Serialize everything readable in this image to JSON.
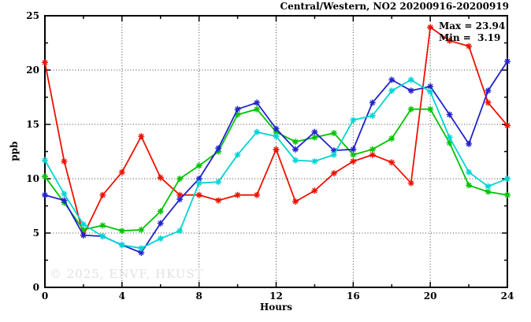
{
  "title": "Central/Western, NO2 20200916-20200919",
  "stats": {
    "max_label": "Max = 23.94",
    "min_label": "Min =  3.19"
  },
  "watermark": "© 2025, ENVF, HKUST",
  "chart_data": {
    "type": "line",
    "title": "Central/Western, NO2 20200916-20200919",
    "xlabel": "Hours",
    "ylabel": "ppb",
    "xlim": [
      0,
      24
    ],
    "ylim": [
      0,
      25
    ],
    "xticks": [
      0,
      4,
      8,
      12,
      16,
      20,
      24
    ],
    "xminorticks": [
      2,
      6,
      10,
      14,
      18,
      22
    ],
    "yticks": [
      0,
      5,
      10,
      15,
      20,
      25
    ],
    "yminorticks": [
      2.5,
      7.5,
      12.5,
      17.5,
      22.5
    ],
    "grid": true,
    "legend_position": "none",
    "max_value": 23.94,
    "min_value": 3.19,
    "x": [
      0,
      1,
      2,
      3,
      4,
      5,
      6,
      7,
      8,
      9,
      10,
      11,
      12,
      13,
      14,
      15,
      16,
      17,
      18,
      19,
      20,
      21,
      22,
      23,
      24
    ],
    "series": [
      {
        "name": "red-line",
        "color": "#ee1100",
        "values": [
          20.7,
          11.6,
          4.8,
          8.5,
          10.6,
          13.9,
          10.1,
          8.5,
          8.5,
          8.0,
          8.5,
          8.5,
          12.7,
          7.9,
          8.9,
          10.5,
          11.6,
          12.2,
          11.5,
          9.6,
          23.94,
          22.7,
          22.2,
          17.0,
          14.9
        ]
      },
      {
        "name": "green-line",
        "color": "#00c400",
        "values": [
          10.2,
          7.8,
          5.3,
          5.7,
          5.2,
          5.3,
          7.0,
          10.0,
          11.2,
          12.5,
          15.9,
          16.4,
          14.3,
          13.4,
          13.8,
          14.2,
          12.2,
          12.7,
          13.7,
          16.4,
          16.4,
          13.3,
          9.4,
          8.8,
          8.5
        ]
      },
      {
        "name": "blue-line",
        "color": "#2222cc",
        "values": [
          8.5,
          8.0,
          4.8,
          4.7,
          3.9,
          3.19,
          5.9,
          8.1,
          10.0,
          12.8,
          16.4,
          17.0,
          14.6,
          12.7,
          14.3,
          12.6,
          12.7,
          17.0,
          19.1,
          18.1,
          18.5,
          15.9,
          13.2,
          18.1,
          20.8
        ]
      },
      {
        "name": "cyan-line",
        "color": "#00d4d4",
        "values": [
          11.7,
          8.6,
          5.8,
          4.7,
          3.9,
          3.6,
          4.5,
          5.2,
          9.6,
          9.7,
          12.2,
          14.3,
          13.9,
          11.7,
          11.6,
          12.2,
          15.4,
          15.8,
          18.1,
          19.1,
          18.0,
          13.8,
          10.6,
          9.3,
          10.0
        ]
      }
    ]
  }
}
